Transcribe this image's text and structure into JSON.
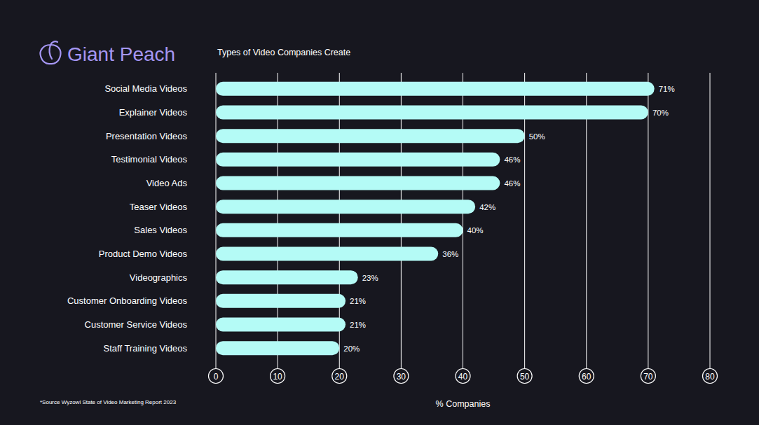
{
  "logo": {
    "text": "Giant Peach"
  },
  "chart_data": {
    "type": "bar",
    "orientation": "horizontal",
    "title": "Types of Video Companies Create",
    "x_label": "% Companies",
    "annotations": [
      "*Source Wyzowl State of Video Marketing Report 2023"
    ],
    "categories": [
      "Social Media Videos",
      "Explainer Videos",
      "Presentation Videos",
      "Testimonial Videos",
      "Video Ads",
      "Teaser Videos",
      "Sales Videos",
      "Product Demo Videos",
      "Videographics",
      "Customer Onboarding Videos",
      "Customer Service Videos",
      "Staff Training Videos"
    ],
    "values": [
      71,
      70,
      50,
      46,
      46,
      42,
      40,
      36,
      23,
      21,
      21,
      20
    ],
    "value_labels": [
      "71%",
      "70%",
      "50%",
      "46%",
      "46%",
      "42%",
      "40%",
      "36%",
      "23%",
      "21%",
      "21%",
      "20%"
    ],
    "color": "#b4fbf6",
    "xlim": [
      0,
      80
    ],
    "xticks": [
      0,
      10,
      20,
      30,
      40,
      50,
      60,
      70,
      80
    ],
    "grid": true,
    "data_labels": true
  }
}
